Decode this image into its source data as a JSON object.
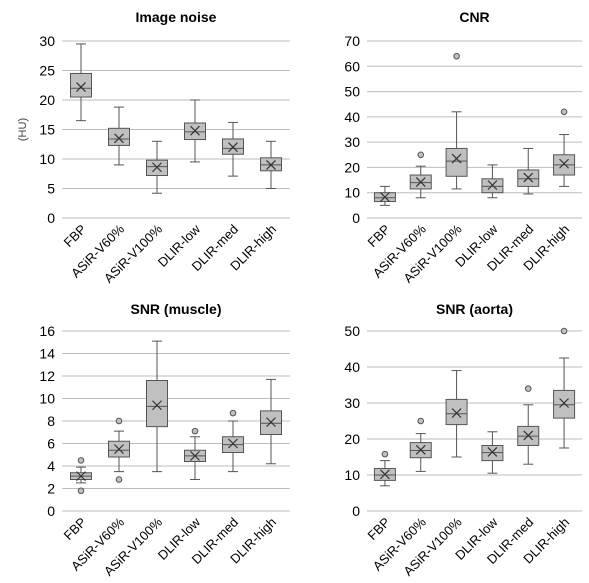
{
  "figure": {
    "categories": [
      "FBP",
      "ASiR-V60%",
      "ASiR-V100%",
      "DLIR-low",
      "DLIR-med",
      "DLIR-high"
    ],
    "colors": {
      "box_fill": "#c0c0c0",
      "stroke": "#555555",
      "grid": "#bdbdbd",
      "text": "#000000"
    }
  },
  "chart_data": [
    {
      "type": "box",
      "title": "Image noise",
      "ylabel": "(HU)",
      "ylim": [
        0,
        30
      ],
      "yticks": [
        0,
        5,
        10,
        15,
        20,
        25,
        30
      ],
      "grid": true,
      "categories": [
        "FBP",
        "ASiR-V60%",
        "ASiR-V100%",
        "DLIR-low",
        "DLIR-med",
        "DLIR-high"
      ],
      "boxes": [
        {
          "min": 16.5,
          "q1": 20.5,
          "median": 22.0,
          "mean": 22.2,
          "q3": 24.5,
          "max": 29.5,
          "outliers": []
        },
        {
          "min": 9.0,
          "q1": 12.3,
          "median": 13.4,
          "mean": 13.5,
          "q3": 15.2,
          "max": 18.8,
          "outliers": []
        },
        {
          "min": 4.2,
          "q1": 7.2,
          "median": 8.7,
          "mean": 8.6,
          "q3": 9.8,
          "max": 13.0,
          "outliers": []
        },
        {
          "min": 9.5,
          "q1": 13.3,
          "median": 14.6,
          "mean": 14.8,
          "q3": 16.1,
          "max": 20.0,
          "outliers": []
        },
        {
          "min": 7.1,
          "q1": 10.8,
          "median": 11.8,
          "mean": 12.0,
          "q3": 13.4,
          "max": 16.2,
          "outliers": []
        },
        {
          "min": 5.0,
          "q1": 8.0,
          "median": 9.0,
          "mean": 9.0,
          "q3": 10.2,
          "max": 13.0,
          "outliers": []
        }
      ]
    },
    {
      "type": "box",
      "title": "CNR",
      "ylabel": "",
      "ylim": [
        0,
        70
      ],
      "yticks": [
        0,
        10,
        20,
        30,
        40,
        50,
        60,
        70
      ],
      "grid": true,
      "categories": [
        "FBP",
        "ASiR-V60%",
        "ASiR-V100%",
        "DLIR-low",
        "DLIR-med",
        "DLIR-high"
      ],
      "boxes": [
        {
          "min": 5.0,
          "q1": 6.5,
          "median": 8.0,
          "mean": 8.3,
          "q3": 10.0,
          "max": 12.5,
          "outliers": []
        },
        {
          "min": 8.0,
          "q1": 11.5,
          "median": 14.0,
          "mean": 14.2,
          "q3": 17.0,
          "max": 20.5,
          "outliers": [
            25.0
          ]
        },
        {
          "min": 11.5,
          "q1": 16.5,
          "median": 22.5,
          "mean": 23.5,
          "q3": 27.5,
          "max": 42.0,
          "outliers": [
            64.0
          ]
        },
        {
          "min": 8.0,
          "q1": 10.0,
          "median": 12.5,
          "mean": 13.0,
          "q3": 15.5,
          "max": 21.0,
          "outliers": []
        },
        {
          "min": 9.5,
          "q1": 12.5,
          "median": 15.5,
          "mean": 16.0,
          "q3": 19.0,
          "max": 27.5,
          "outliers": []
        },
        {
          "min": 12.5,
          "q1": 17.0,
          "median": 21.0,
          "mean": 21.5,
          "q3": 25.0,
          "max": 33.0,
          "outliers": [
            42.0
          ]
        }
      ]
    },
    {
      "type": "box",
      "title": "SNR (muscle)",
      "ylabel": "",
      "ylim": [
        0,
        16
      ],
      "yticks": [
        0,
        2,
        4,
        6,
        8,
        10,
        12,
        14,
        16
      ],
      "grid": true,
      "categories": [
        "FBP",
        "ASiR-V60%",
        "ASiR-V100%",
        "DLIR-low",
        "DLIR-med",
        "DLIR-high"
      ],
      "boxes": [
        {
          "min": 2.5,
          "q1": 2.8,
          "median": 3.1,
          "mean": 3.1,
          "q3": 3.4,
          "max": 3.9,
          "outliers": [
            4.5,
            1.8
          ]
        },
        {
          "min": 3.5,
          "q1": 4.8,
          "median": 5.4,
          "mean": 5.5,
          "q3": 6.2,
          "max": 7.1,
          "outliers": [
            8.0,
            2.8
          ]
        },
        {
          "min": 3.5,
          "q1": 7.5,
          "median": 9.3,
          "mean": 9.4,
          "q3": 11.6,
          "max": 15.1,
          "outliers": []
        },
        {
          "min": 2.8,
          "q1": 4.4,
          "median": 4.9,
          "mean": 4.9,
          "q3": 5.4,
          "max": 6.6,
          "outliers": [
            7.1
          ]
        },
        {
          "min": 3.5,
          "q1": 5.2,
          "median": 5.9,
          "mean": 6.0,
          "q3": 6.6,
          "max": 8.0,
          "outliers": [
            8.7
          ]
        },
        {
          "min": 4.2,
          "q1": 6.8,
          "median": 7.8,
          "mean": 7.9,
          "q3": 8.9,
          "max": 11.7,
          "outliers": []
        }
      ]
    },
    {
      "type": "box",
      "title": "SNR (aorta)",
      "ylabel": "",
      "ylim": [
        0,
        50
      ],
      "yticks": [
        0,
        10,
        20,
        30,
        40,
        50
      ],
      "grid": true,
      "categories": [
        "FBP",
        "ASiR-V60%",
        "ASiR-V100%",
        "DLIR-low",
        "DLIR-med",
        "DLIR-high"
      ],
      "boxes": [
        {
          "min": 7.0,
          "q1": 8.5,
          "median": 10.0,
          "mean": 10.2,
          "q3": 11.8,
          "max": 14.0,
          "outliers": [
            15.8
          ]
        },
        {
          "min": 11.0,
          "q1": 14.8,
          "median": 16.8,
          "mean": 17.0,
          "q3": 19.0,
          "max": 21.5,
          "outliers": [
            25.0
          ]
        },
        {
          "min": 15.0,
          "q1": 24.0,
          "median": 27.0,
          "mean": 27.2,
          "q3": 31.0,
          "max": 39.0,
          "outliers": []
        },
        {
          "min": 10.5,
          "q1": 14.0,
          "median": 16.2,
          "mean": 16.4,
          "q3": 18.2,
          "max": 22.0,
          "outliers": []
        },
        {
          "min": 13.0,
          "q1": 18.2,
          "median": 20.8,
          "mean": 21.0,
          "q3": 23.5,
          "max": 29.5,
          "outliers": [
            34.0
          ]
        },
        {
          "min": 17.5,
          "q1": 25.8,
          "median": 29.5,
          "mean": 30.0,
          "q3": 33.5,
          "max": 42.5,
          "outliers": [
            50.0
          ]
        }
      ]
    }
  ]
}
